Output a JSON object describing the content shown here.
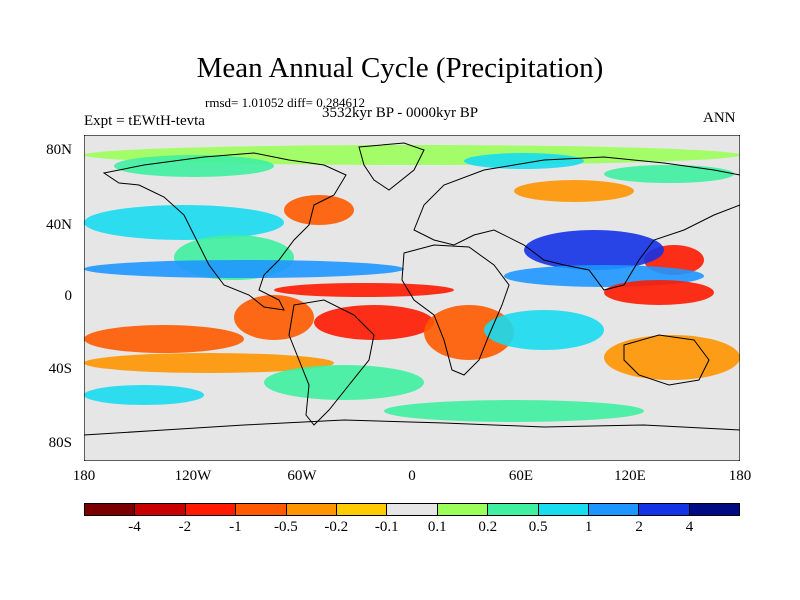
{
  "title": "Mean Annual Cycle (Precipitation)",
  "stats": "rmsd= 1.01052 diff= 0.284612",
  "experiment": "Expt = tEWtH-tevta",
  "period": "3532kyr BP - 0000kyr BP",
  "season": "ANN",
  "lat_ticks": [
    "80N",
    "40N",
    "0",
    "40S",
    "80S"
  ],
  "lon_ticks": [
    "180",
    "120W",
    "60W",
    "0",
    "60E",
    "120E",
    "180"
  ],
  "colorbar": {
    "labels": [
      "-4",
      "-2",
      "-1",
      "-0.5",
      "-0.2",
      "-0.1",
      "0.1",
      "0.2",
      "0.5",
      "1",
      "2",
      "4"
    ],
    "colors": [
      "#7a0000",
      "#c80000",
      "#ff1a00",
      "#ff5a00",
      "#ff9500",
      "#ffcc00",
      "#e6e6e6",
      "#9bff5a",
      "#3ef0a0",
      "#18dcf0",
      "#1e96ff",
      "#1432e6",
      "#000a82"
    ]
  },
  "colors": {
    "neutral": "#e6e6e6",
    "dry_strong": "#ff1a00",
    "dry": "#ff5a00",
    "dry_mild": "#ff9500",
    "wet_mild": "#9bff5a",
    "wet": "#3ef0a0",
    "wet_more": "#18dcf0",
    "wet_strong": "#1e96ff",
    "wet_max": "#1432e6"
  }
}
